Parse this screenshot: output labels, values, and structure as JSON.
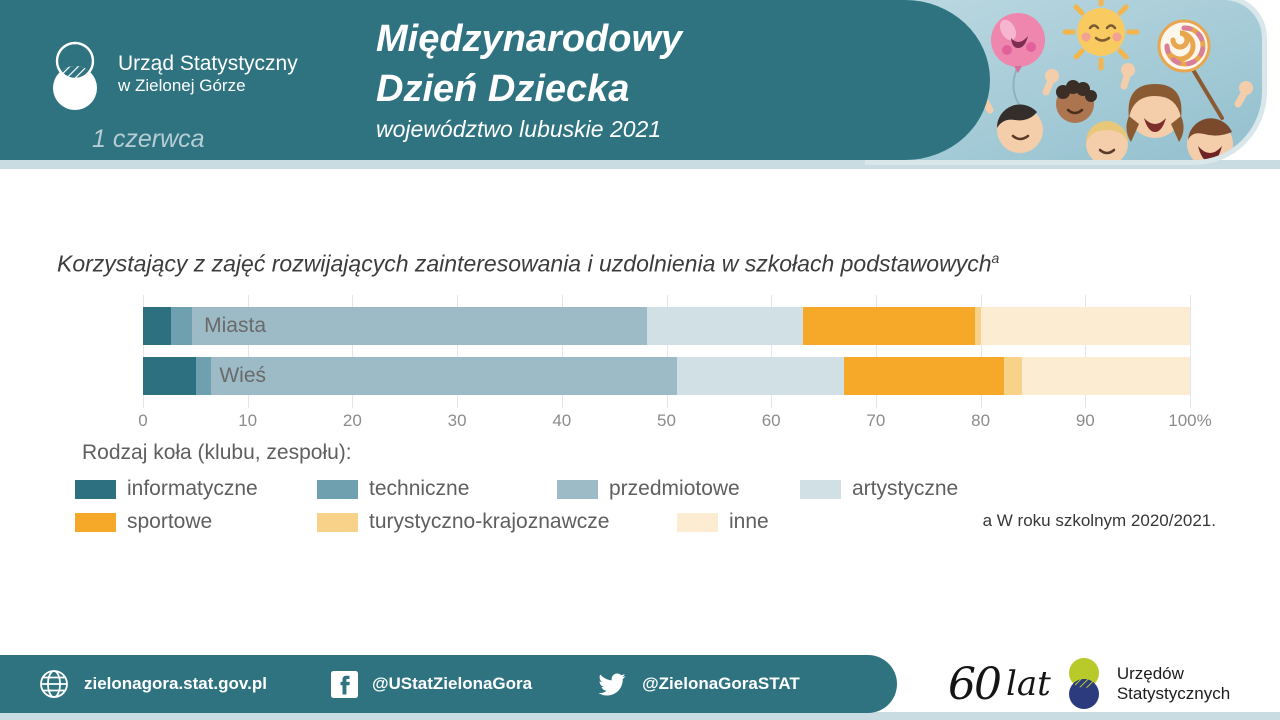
{
  "header": {
    "org_line1": "Urząd Statystyczny",
    "org_line2": "w Zielonej Górze",
    "date": "1 czerwca",
    "title_line1": "Międzynarodowy",
    "title_line2": "Dzień Dziecka",
    "subtitle": "województwo lubuskie 2021"
  },
  "chart": {
    "title": "Korzystający z zajęć rozwijających zainteresowania i uzdolnienia w szkołach podstawowych",
    "title_superscript": "a"
  },
  "chart_data": {
    "type": "bar",
    "orientation": "horizontal-stacked",
    "unit": "%",
    "categories": [
      "Miasta",
      "Wieś"
    ],
    "series": [
      {
        "name": "informatyczne",
        "color": "#2d7080",
        "values": [
          2.7,
          5.1
        ]
      },
      {
        "name": "techniczne",
        "color": "#6ea0b0",
        "values": [
          2.0,
          1.4
        ]
      },
      {
        "name": "przedmiotowe",
        "color": "#9cbbc6",
        "values": [
          43.4,
          44.5
        ]
      },
      {
        "name": "artystyczne",
        "color": "#d0e0e4",
        "values": [
          14.9,
          16.0
        ]
      },
      {
        "name": "sportowe",
        "color": "#f6a928",
        "values": [
          16.5,
          15.2
        ]
      },
      {
        "name": "turystyczno-krajoznawcze",
        "color": "#f8d289",
        "values": [
          0.5,
          1.8
        ]
      },
      {
        "name": "inne",
        "color": "#fcecd2",
        "values": [
          20.0,
          16.0
        ]
      }
    ],
    "xlim": [
      0,
      100
    ],
    "x_ticks": [
      "0",
      "10",
      "20",
      "30",
      "40",
      "50",
      "60",
      "70",
      "80",
      "90",
      "100%"
    ],
    "grid": true,
    "legend_title": "Rodzaj koła (klubu, zespołu):",
    "legend_position": "bottom"
  },
  "footnote": {
    "marker": "a",
    "text": "W roku szkolnym 2020/2021."
  },
  "footer": {
    "website": "zielonagora.stat.gov.pl",
    "facebook_handle": "@UStatZielonaGora",
    "twitter_handle": "@ZielonaGoraSTAT",
    "anniversary_number": "60",
    "anniversary_word": "lat",
    "anniversary_line1": "Urzędów",
    "anniversary_line2": "Statystycznych"
  }
}
